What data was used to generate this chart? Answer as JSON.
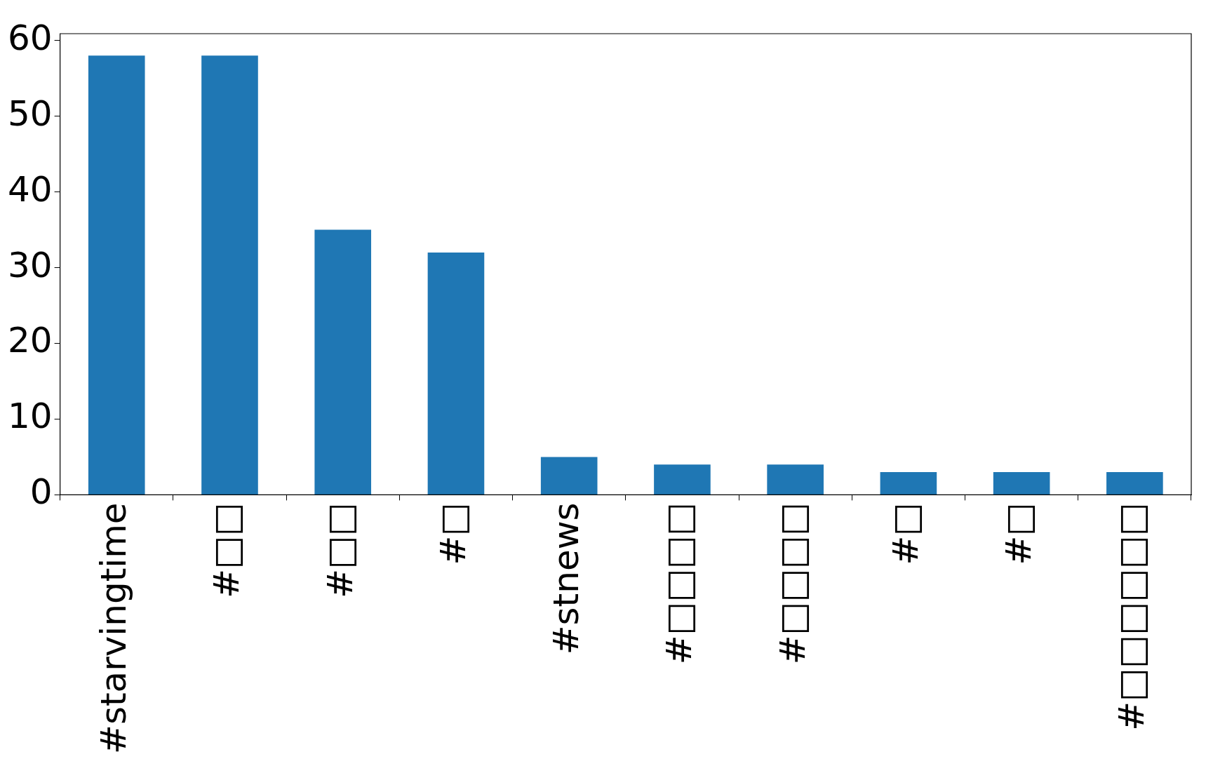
{
  "chart_data": {
    "type": "bar",
    "categories": [
      "#starvingtime",
      "#□□",
      "#□□",
      "#□",
      "#stnews",
      "#□□□□",
      "#□□□□",
      "#□",
      "#□",
      "#□□□□□□"
    ],
    "values": [
      58,
      58,
      35,
      32,
      5,
      4,
      4,
      3,
      3,
      3
    ],
    "color": "#1f77b4",
    "ylim": [
      0,
      60.9
    ],
    "yticks": [
      0,
      10,
      20,
      30,
      40,
      50,
      60
    ],
    "grid": false,
    "legend": false
  }
}
